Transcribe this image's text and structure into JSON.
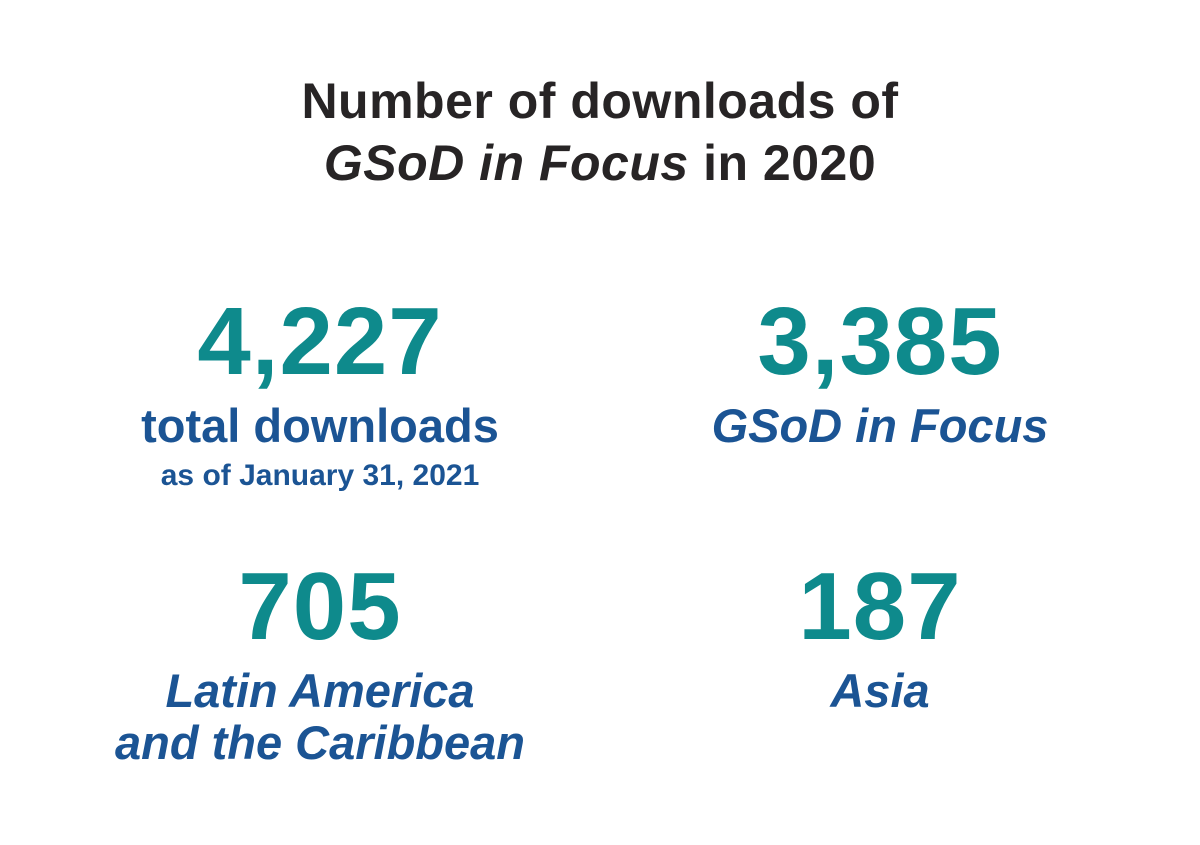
{
  "title": {
    "line1": "Number of downloads of",
    "line2_italic": "GSoD in Focus",
    "line2_rest": " in 2020"
  },
  "stats": [
    {
      "value": "4,227",
      "label": "total downloads",
      "sublabel": "as of January 31, 2021"
    },
    {
      "value": "3,385",
      "label": "GSoD in Focus"
    },
    {
      "value": "705",
      "label": "Latin America\nand the Caribbean"
    },
    {
      "value": "187",
      "label": "Asia"
    }
  ],
  "colors": {
    "value_teal": "#0E8A8C",
    "label_blue": "#1B5494",
    "title_dark": "#272425",
    "background": "#FFFFFF"
  },
  "chart_data": {
    "type": "table",
    "title": "Number of downloads of GSoD in Focus in 2020",
    "categories": [
      "total downloads (as of January 31, 2021)",
      "GSoD in Focus",
      "Latin America and the Caribbean",
      "Asia"
    ],
    "values": [
      4227,
      3385,
      705,
      187
    ]
  }
}
